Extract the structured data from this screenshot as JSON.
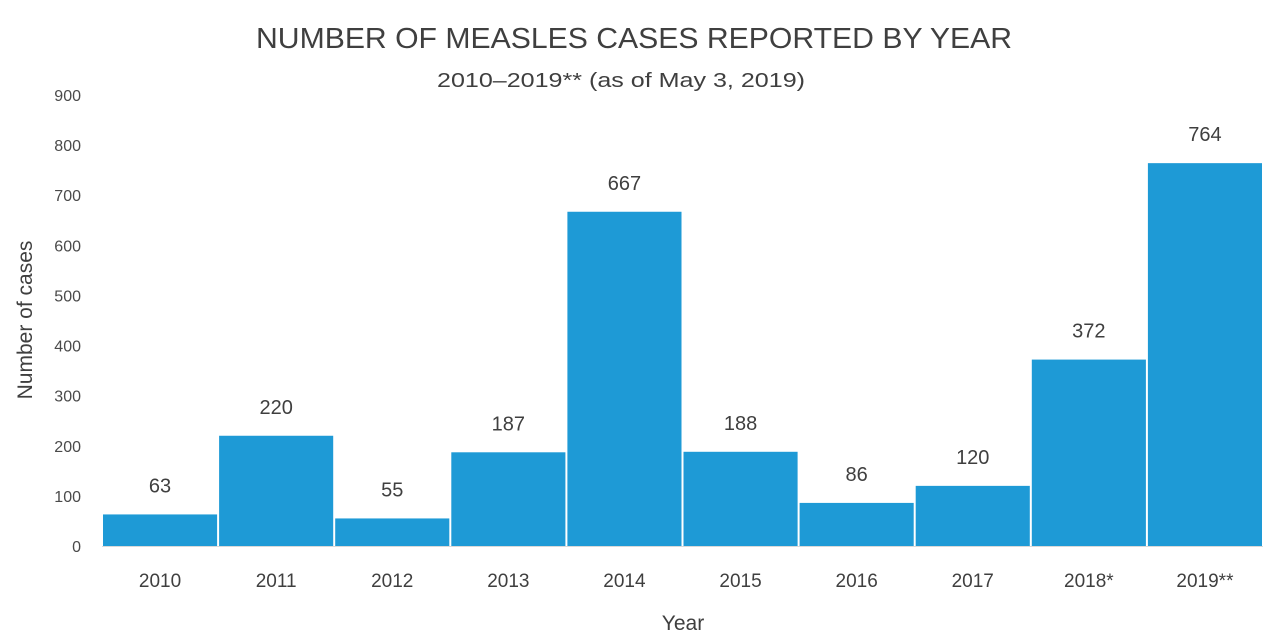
{
  "chart_data": {
    "type": "bar",
    "title": "NUMBER OF MEASLES CASES REPORTED BY YEAR",
    "subtitle": "2010–2019** (as of May 3, 2019)",
    "xlabel": "Year",
    "ylabel": "Number of cases",
    "categories": [
      "2010",
      "2011",
      "2012",
      "2013",
      "2014",
      "2015",
      "2016",
      "2017",
      "2018*",
      "2019**"
    ],
    "values": [
      63,
      220,
      55,
      187,
      667,
      188,
      86,
      120,
      372,
      764
    ],
    "data_labels": [
      "63",
      "220",
      "55",
      "187",
      "667",
      "188",
      "86",
      "120",
      "372",
      "764"
    ],
    "ylim": [
      0,
      900
    ],
    "yticks": [
      "0",
      "100",
      "200",
      "300",
      "400",
      "500",
      "600",
      "700",
      "800",
      "900"
    ],
    "grid": false,
    "legend": "none",
    "bar_color": "#1e9ad6"
  }
}
